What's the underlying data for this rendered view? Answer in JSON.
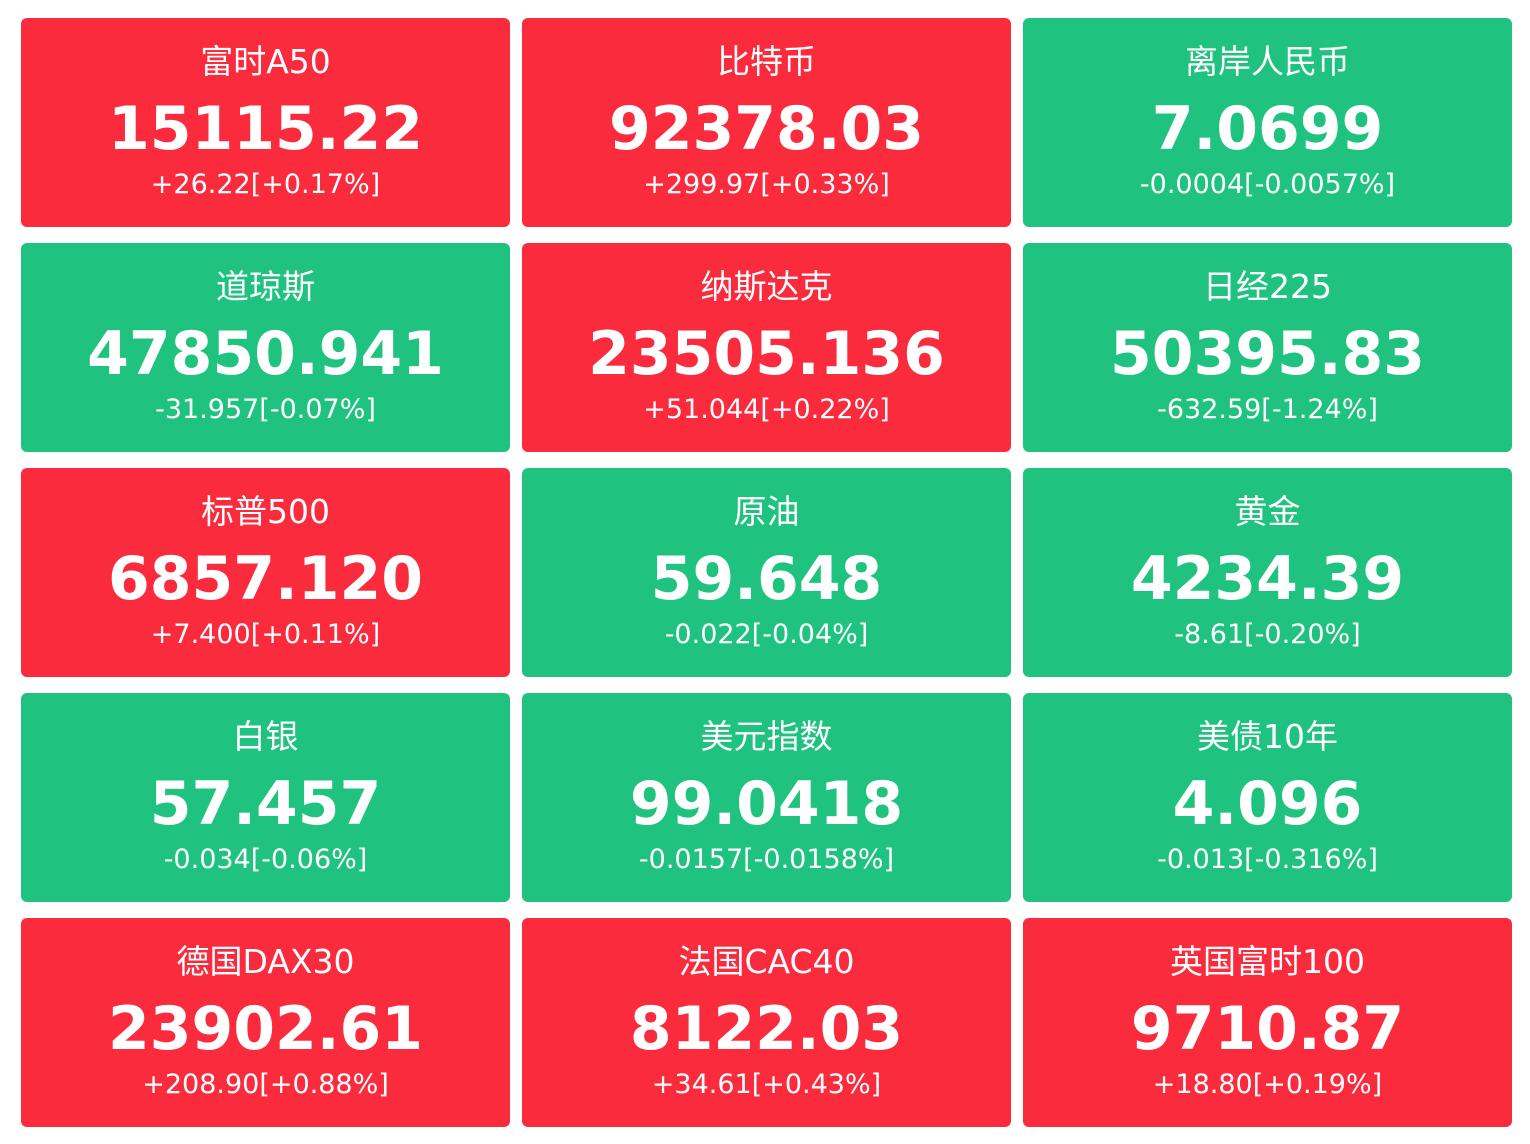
{
  "colors": {
    "up": "#fb2b3e",
    "down": "#1fc37f",
    "text": "#ffffff"
  },
  "quotes": [
    {
      "name": "富时A50",
      "price": "15115.22",
      "change": "+26.22[+0.17%]",
      "direction": "up"
    },
    {
      "name": "比特币",
      "price": "92378.03",
      "change": "+299.97[+0.33%]",
      "direction": "up"
    },
    {
      "name": "离岸人民币",
      "price": "7.0699",
      "change": "-0.0004[-0.0057%]",
      "direction": "down"
    },
    {
      "name": "道琼斯",
      "price": "47850.941",
      "change": "-31.957[-0.07%]",
      "direction": "down"
    },
    {
      "name": "纳斯达克",
      "price": "23505.136",
      "change": "+51.044[+0.22%]",
      "direction": "up"
    },
    {
      "name": "日经225",
      "price": "50395.83",
      "change": "-632.59[-1.24%]",
      "direction": "down"
    },
    {
      "name": "标普500",
      "price": "6857.120",
      "change": "+7.400[+0.11%]",
      "direction": "up"
    },
    {
      "name": "原油",
      "price": "59.648",
      "change": "-0.022[-0.04%]",
      "direction": "down"
    },
    {
      "name": "黄金",
      "price": "4234.39",
      "change": "-8.61[-0.20%]",
      "direction": "down"
    },
    {
      "name": "白银",
      "price": "57.457",
      "change": "-0.034[-0.06%]",
      "direction": "down"
    },
    {
      "name": "美元指数",
      "price": "99.0418",
      "change": "-0.0157[-0.0158%]",
      "direction": "down"
    },
    {
      "name": "美债10年",
      "price": "4.096",
      "change": "-0.013[-0.316%]",
      "direction": "down"
    },
    {
      "name": "德国DAX30",
      "price": "23902.61",
      "change": "+208.90[+0.88%]",
      "direction": "up"
    },
    {
      "name": "法国CAC40",
      "price": "8122.03",
      "change": "+34.61[+0.43%]",
      "direction": "up"
    },
    {
      "name": "英国富时100",
      "price": "9710.87",
      "change": "+18.80[+0.19%]",
      "direction": "up"
    }
  ]
}
